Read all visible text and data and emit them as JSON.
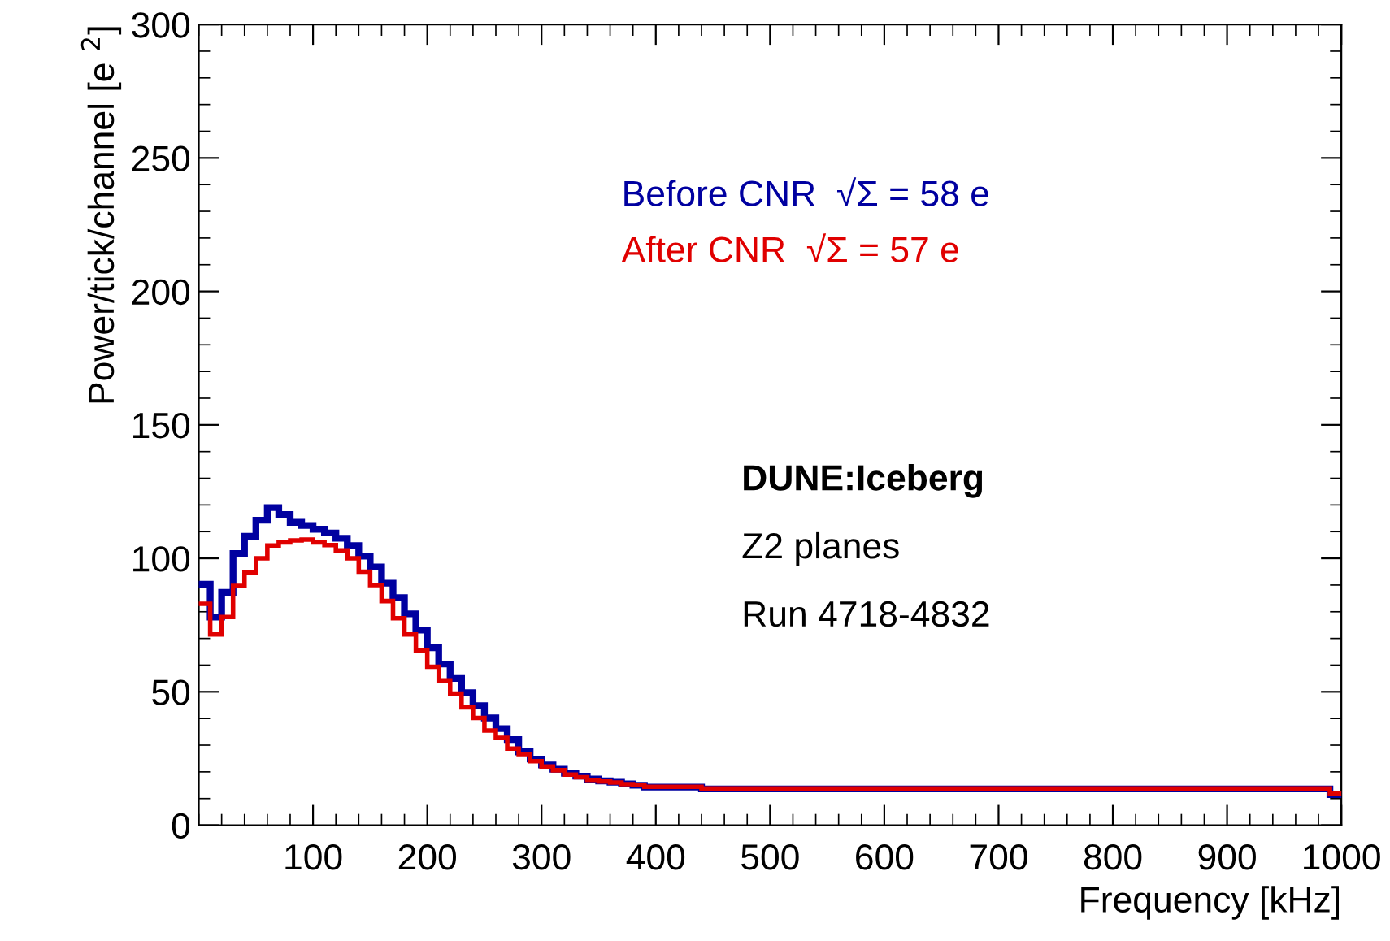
{
  "chart_data": {
    "type": "step",
    "xlabel": "Frequency [kHz]",
    "ylabel": "Power/tick/channel [e $^{2}$]",
    "x": [
      5,
      15,
      25,
      35,
      45,
      55,
      65,
      75,
      85,
      95,
      105,
      115,
      125,
      135,
      145,
      155,
      165,
      175,
      185,
      195,
      205,
      215,
      225,
      235,
      245,
      255,
      265,
      275,
      285,
      295,
      305,
      315,
      325,
      335,
      345,
      355,
      365,
      375,
      385,
      395,
      405,
      415,
      425,
      435,
      445,
      455,
      465,
      475,
      485,
      495,
      505,
      515,
      525,
      535,
      545,
      555,
      565,
      575,
      585,
      595,
      605,
      615,
      625,
      635,
      645,
      655,
      665,
      675,
      685,
      695,
      705,
      715,
      725,
      735,
      745,
      755,
      765,
      775,
      785,
      795,
      805,
      815,
      825,
      835,
      845,
      855,
      865,
      875,
      885,
      895,
      905,
      915,
      925,
      935,
      945,
      955,
      965,
      975,
      985,
      995
    ],
    "series": [
      {
        "name": "Before CNR  √Σ = 58 e",
        "color": "#0000a0",
        "values": [
          90.3,
          78,
          87.3,
          101.8,
          108.3,
          114.3,
          119,
          116.4,
          113.5,
          112.3,
          110.9,
          109.5,
          107.5,
          104.8,
          100.8,
          96.8,
          90.7,
          85.3,
          79.2,
          73.1,
          66.5,
          60.4,
          55,
          49.7,
          44.8,
          40.2,
          36.2,
          32.1,
          27.5,
          24.8,
          22.6,
          21,
          19.5,
          18.4,
          17.3,
          16.6,
          16.1,
          15.5,
          15,
          14.3,
          14.3,
          14.3,
          14.3,
          14.3,
          13.6,
          13.6,
          13.6,
          13.6,
          13.6,
          13.6,
          13.6,
          13.6,
          13.6,
          13.6,
          13.6,
          13.6,
          13.6,
          13.6,
          13.6,
          13.6,
          13.6,
          13.6,
          13.6,
          13.6,
          13.6,
          13.6,
          13.6,
          13.6,
          13.6,
          13.6,
          13.6,
          13.6,
          13.6,
          13.6,
          13.6,
          13.6,
          13.6,
          13.6,
          13.6,
          13.6,
          13.6,
          13.6,
          13.6,
          13.6,
          13.6,
          13.6,
          13.6,
          13.6,
          13.6,
          13.6,
          13.6,
          13.6,
          13.6,
          13.6,
          13.6,
          13.6,
          13.6,
          13.6,
          13.6,
          11.5
        ]
      },
      {
        "name": "After CNR  √Σ = 57 e",
        "color": "#e00000",
        "values": [
          83,
          71.5,
          78,
          89.7,
          94.7,
          100,
          104.8,
          106,
          106.7,
          107,
          106,
          105,
          103,
          100,
          95,
          90,
          84,
          77.6,
          71.5,
          65.5,
          59.4,
          54.3,
          49.3,
          44.2,
          40.2,
          35.5,
          32.7,
          28.7,
          26.7,
          24,
          22,
          20.6,
          19,
          18,
          17,
          16.4,
          16,
          15.4,
          15,
          14.4,
          14.4,
          14.4,
          14.4,
          14.4,
          13.8,
          13.8,
          13.8,
          13.8,
          13.8,
          13.8,
          13.8,
          13.8,
          13.8,
          13.8,
          13.8,
          13.8,
          13.8,
          13.8,
          13.8,
          13.8,
          13.8,
          13.8,
          13.8,
          13.8,
          13.8,
          13.8,
          13.8,
          13.8,
          13.8,
          13.8,
          13.8,
          13.8,
          13.8,
          13.8,
          13.8,
          13.8,
          13.8,
          13.8,
          13.8,
          13.8,
          13.8,
          13.8,
          13.8,
          13.8,
          13.8,
          13.8,
          13.8,
          13.8,
          13.8,
          13.8,
          13.8,
          13.8,
          13.8,
          13.8,
          13.8,
          13.8,
          13.8,
          13.8,
          13.8,
          12
        ]
      }
    ],
    "annotations": [
      "DUNE:Iceberg",
      "Z2 planes",
      "Run 4718-4832"
    ],
    "xlim": [
      0,
      1000
    ],
    "xticks": [
      100,
      200,
      300,
      400,
      500,
      600,
      700,
      800,
      900,
      1000
    ],
    "ylim": [
      0,
      300
    ],
    "yticks": [
      0,
      50,
      100,
      150,
      200,
      250,
      300
    ],
    "grid": false
  }
}
